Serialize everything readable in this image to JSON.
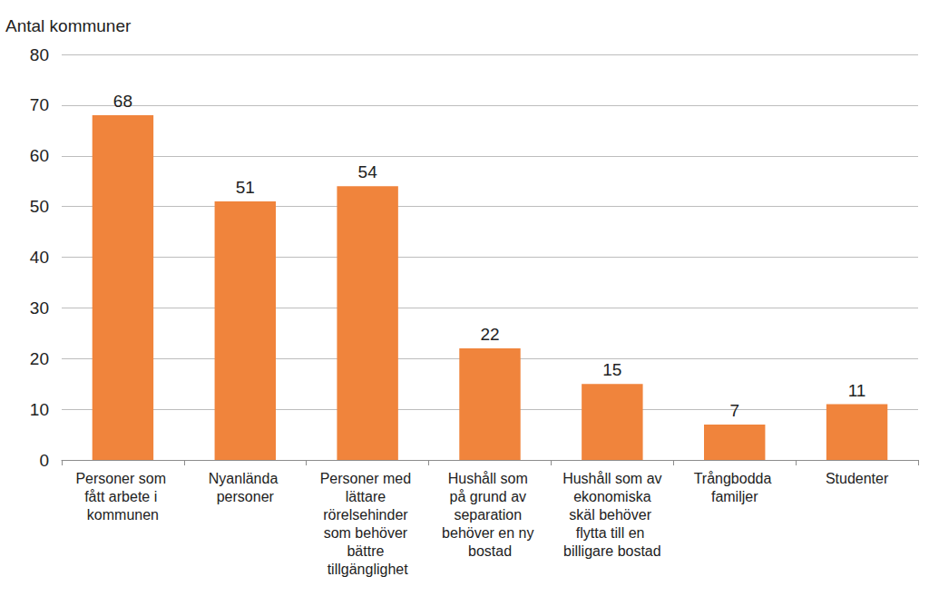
{
  "chart_data": {
    "type": "bar",
    "ylabel": "Antal kommuner",
    "categories": [
      "Personer som fått arbete i kommunen",
      "Nyanlända personer",
      "Personer med lättare rörelsehinder som behöver bättre tillgänglighet",
      "Hushåll som på grund av separation behöver en ny bostad",
      "Hushåll som av ekonomiska skäl behöver flytta till en billigare bostad",
      "Trångbodda familjer",
      "Studenter"
    ],
    "values": [
      68,
      51,
      54,
      22,
      15,
      7,
      11
    ],
    "color": "#f0843c",
    "ylim": [
      0,
      80
    ],
    "yticks": [
      0,
      10,
      20,
      30,
      40,
      50,
      60,
      70,
      80
    ],
    "grid": true,
    "data_labels": true
  }
}
